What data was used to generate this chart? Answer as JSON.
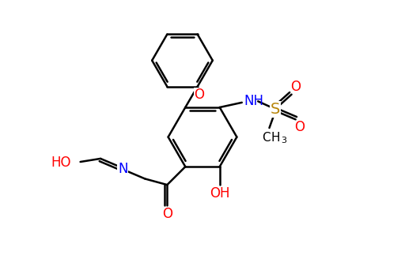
{
  "bg_color": "#ffffff",
  "bond_color": "#000000",
  "red_color": "#ff0000",
  "blue_color": "#0000ff",
  "gold_color": "#b8860b",
  "line_width": 1.8,
  "font_size_atom": 11,
  "font_size_subscript": 8,
  "xlim": [
    0,
    10
  ],
  "ylim": [
    0,
    6.7
  ]
}
